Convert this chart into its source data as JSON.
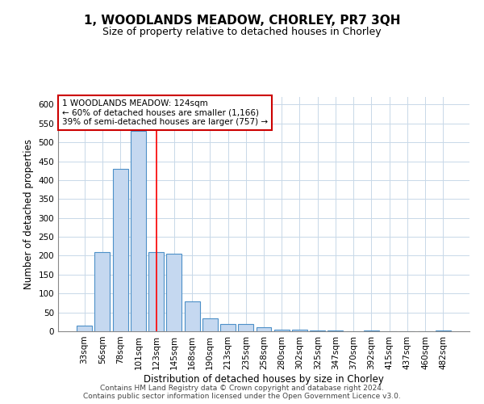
{
  "title": "1, WOODLANDS MEADOW, CHORLEY, PR7 3QH",
  "subtitle": "Size of property relative to detached houses in Chorley",
  "xlabel": "Distribution of detached houses by size in Chorley",
  "ylabel": "Number of detached properties",
  "footnote1": "Contains HM Land Registry data © Crown copyright and database right 2024.",
  "footnote2": "Contains public sector information licensed under the Open Government Licence v3.0.",
  "bar_labels": [
    "33sqm",
    "56sqm",
    "78sqm",
    "101sqm",
    "123sqm",
    "145sqm",
    "168sqm",
    "190sqm",
    "213sqm",
    "235sqm",
    "258sqm",
    "280sqm",
    "302sqm",
    "325sqm",
    "347sqm",
    "370sqm",
    "392sqm",
    "415sqm",
    "437sqm",
    "460sqm",
    "482sqm"
  ],
  "bar_values": [
    15,
    210,
    430,
    530,
    210,
    205,
    80,
    35,
    20,
    20,
    10,
    5,
    5,
    3,
    2,
    0,
    3,
    0,
    0,
    0,
    3
  ],
  "bar_color": "#c5d8f0",
  "bar_edge_color": "#4d90c8",
  "annotation_text": "1 WOODLANDS MEADOW: 124sqm\n← 60% of detached houses are smaller (1,166)\n39% of semi-detached houses are larger (757) →",
  "annotation_box_color": "#ffffff",
  "annotation_box_edge": "#cc0000",
  "red_line_index": 4,
  "ylim": [
    0,
    620
  ],
  "yticks": [
    0,
    50,
    100,
    150,
    200,
    250,
    300,
    350,
    400,
    450,
    500,
    550,
    600
  ],
  "background_color": "#ffffff",
  "grid_color": "#c8d8e8",
  "title_fontsize": 11,
  "subtitle_fontsize": 9,
  "ylabel_fontsize": 8.5,
  "xlabel_fontsize": 8.5,
  "tick_fontsize": 7.5,
  "annot_fontsize": 7.5
}
